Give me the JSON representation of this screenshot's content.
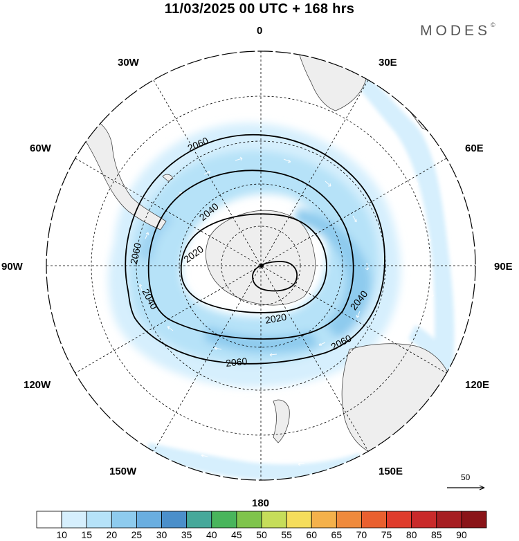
{
  "header": {
    "title": "11/03/2025  00 UTC  + 168 hrs",
    "brand": "MODES",
    "brand_mark": "©"
  },
  "map": {
    "projection": "south-polar-stereographic",
    "longitude_labels": [
      "0",
      "30E",
      "60E",
      "90E",
      "120E",
      "150E",
      "180",
      "150W",
      "120W",
      "90W",
      "60W",
      "30W"
    ],
    "graticule_style": "dashed",
    "land_color": "#eeeeee",
    "coast_color": "#444444"
  },
  "contours": {
    "levels": [
      2020,
      2040,
      2060
    ],
    "labels": [
      "2060",
      "2040",
      "2020",
      "2060",
      "2040",
      "2020",
      "2040",
      "2060",
      "2060"
    ],
    "center_dot": true
  },
  "wind_reference": {
    "value": "50",
    "arrow": "right-arrow-icon"
  },
  "colorbar": {
    "ticks": [
      "10",
      "15",
      "20",
      "25",
      "30",
      "35",
      "40",
      "45",
      "50",
      "55",
      "60",
      "65",
      "70",
      "75",
      "80",
      "85",
      "90"
    ],
    "colors": [
      "#ffffff",
      "#d6effd",
      "#b6e2f8",
      "#8ecbee",
      "#6aaee0",
      "#4b8fca",
      "#46a89a",
      "#49b55c",
      "#7fc44c",
      "#c6dd5a",
      "#f5dd5c",
      "#f4b14b",
      "#ef8a3c",
      "#e9602f",
      "#df3c2c",
      "#c92a2a",
      "#a61e22",
      "#8a1418"
    ]
  }
}
